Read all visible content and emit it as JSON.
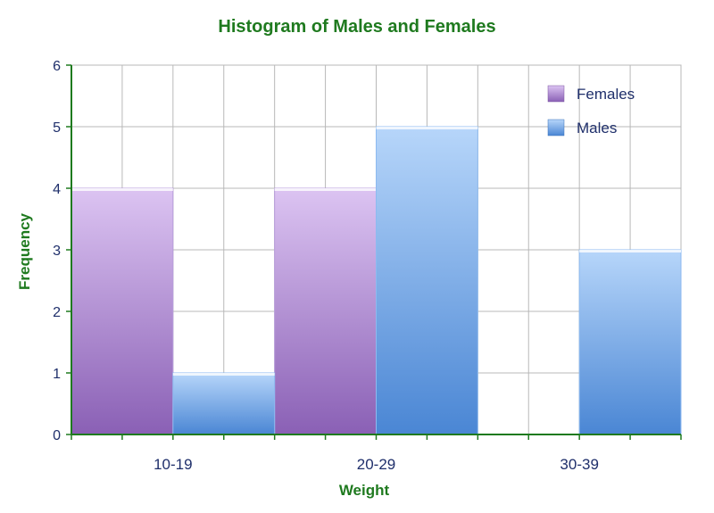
{
  "chart_data": {
    "type": "bar",
    "title": "Histogram of Males and Females",
    "xlabel": "Weight",
    "ylabel": "Frequency",
    "categories": [
      "10-19",
      "20-29",
      "30-39"
    ],
    "series": [
      {
        "name": "Females",
        "values": [
          4,
          4,
          0
        ]
      },
      {
        "name": "Males",
        "values": [
          1,
          5,
          3
        ]
      }
    ],
    "ylim": [
      0,
      6
    ],
    "yticks": [
      0,
      1,
      2,
      3,
      4,
      5,
      6
    ],
    "grid": true,
    "legend_position": "top-right"
  },
  "colors": {
    "females_light": "#dcc4f2",
    "females_dark": "#8a60b5",
    "males_light": "#b7d6fa",
    "males_dark": "#4a86d4",
    "axis": "#1f7a1f"
  }
}
